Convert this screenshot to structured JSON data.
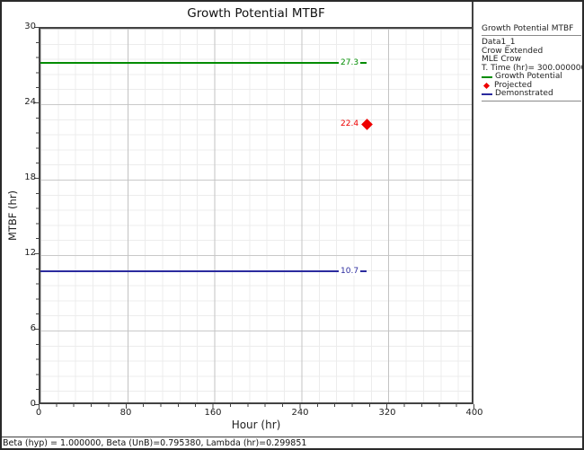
{
  "window": {
    "status_bar": "Beta (hyp) = 1.000000, Beta (UnB)=0.795380, Lambda (hr)=0.299851"
  },
  "chart_data": {
    "type": "line",
    "title": "Growth Potential MTBF",
    "xlabel": "Hour (hr)",
    "ylabel": "MTBF (hr)",
    "xlim": [
      0,
      400
    ],
    "ylim": [
      0,
      30
    ],
    "x_ticks": [
      0,
      80,
      160,
      240,
      320,
      400
    ],
    "y_ticks": [
      0,
      6,
      12,
      18,
      24,
      30
    ],
    "x_tick_labels": [
      "0",
      "80",
      "160",
      "240",
      "320",
      "400"
    ],
    "y_tick_labels_top_down": [
      "30",
      "24",
      "18",
      "12",
      "6",
      "0"
    ],
    "grid": "major and minor gridlines, minor every 1/5 of major interval",
    "legend_position": "right",
    "series": [
      {
        "name": "Growth Potential",
        "type": "hline",
        "value": 27.3,
        "x_range": [
          0,
          300
        ],
        "color": "#008c00",
        "label": "27.3"
      },
      {
        "name": "Projected",
        "type": "point",
        "x": 300,
        "y": 22.4,
        "marker": "diamond",
        "color": "#ee0000",
        "label": "22.4"
      },
      {
        "name": "Demonstrated",
        "type": "hline",
        "value": 10.7,
        "x_range": [
          0,
          300
        ],
        "color": "#2b2b9e",
        "label": "10.7"
      }
    ]
  },
  "legend": {
    "heading": "Growth Potential MTBF",
    "info_lines": [
      "Data1_1",
      "Crow Extended",
      "MLE Crow",
      "T. Time (hr)= 300.000000"
    ],
    "entries": [
      {
        "label": "Growth Potential",
        "marker": "line",
        "color": "#008c00"
      },
      {
        "label": "Projected",
        "marker": "diamond",
        "color": "#ee0000"
      },
      {
        "label": "Demonstrated",
        "marker": "line",
        "color": "#2b2b9e"
      }
    ]
  }
}
